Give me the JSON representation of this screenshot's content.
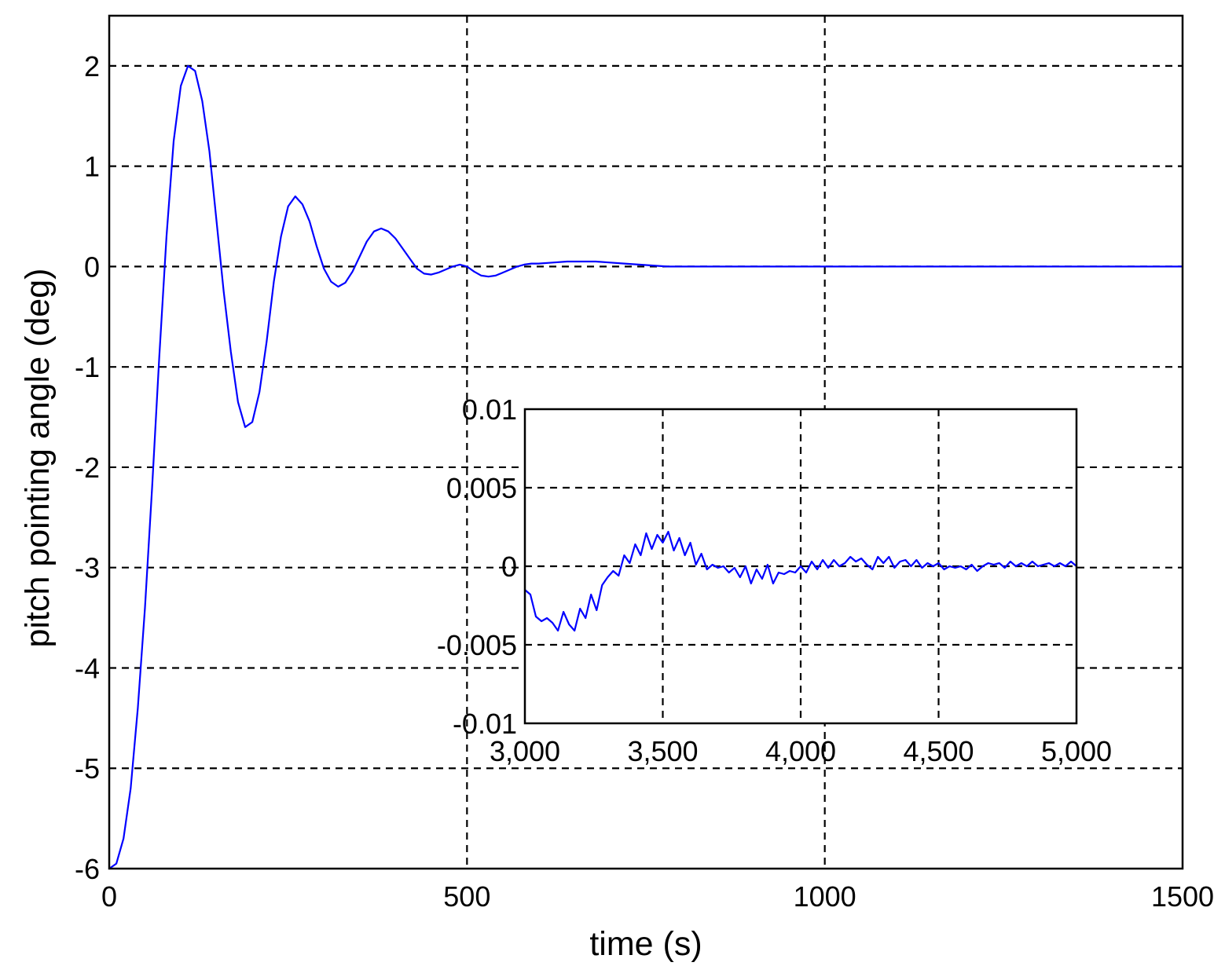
{
  "chart_data": [
    {
      "id": "main",
      "type": "line",
      "title": "",
      "xlabel": "time (s)",
      "ylabel": "pitch pointing angle (deg)",
      "xlim": [
        0,
        1500
      ],
      "ylim": [
        -6,
        2.5
      ],
      "x_ticks": [
        0,
        500,
        1000,
        1500
      ],
      "x_tick_labels": [
        "0",
        "500",
        "1000",
        "1500"
      ],
      "y_ticks": [
        2,
        1,
        0,
        -1,
        -2,
        -3,
        -4,
        -5,
        -6
      ],
      "y_tick_labels": [
        "2",
        "1",
        "0",
        "-1",
        "-2",
        "-3",
        "-4",
        "-5",
        "-6"
      ],
      "grid": true,
      "series": [
        {
          "color": "#0000ff",
          "x": [
            0,
            10,
            20,
            30,
            40,
            50,
            60,
            70,
            80,
            90,
            100,
            110,
            120,
            130,
            140,
            150,
            160,
            170,
            180,
            190,
            200,
            210,
            220,
            230,
            240,
            250,
            260,
            270,
            280,
            290,
            300,
            310,
            320,
            330,
            340,
            350,
            360,
            370,
            380,
            390,
            400,
            410,
            420,
            430,
            440,
            450,
            460,
            470,
            480,
            490,
            500,
            510,
            520,
            530,
            540,
            550,
            560,
            570,
            580,
            590,
            600,
            620,
            640,
            660,
            680,
            700,
            720,
            740,
            760,
            780,
            800,
            820,
            840,
            860,
            880,
            900,
            920,
            940,
            960,
            980,
            1000,
            1050,
            1100,
            1150,
            1200,
            1250,
            1300,
            1350,
            1400,
            1450,
            1500
          ],
          "y": [
            -6.0,
            -5.95,
            -5.7,
            -5.2,
            -4.4,
            -3.4,
            -2.2,
            -0.9,
            0.3,
            1.25,
            1.8,
            2.0,
            1.95,
            1.65,
            1.15,
            0.45,
            -0.25,
            -0.85,
            -1.35,
            -1.6,
            -1.55,
            -1.25,
            -0.75,
            -0.15,
            0.3,
            0.6,
            0.7,
            0.62,
            0.45,
            0.2,
            -0.02,
            -0.15,
            -0.2,
            -0.16,
            -0.05,
            0.1,
            0.25,
            0.35,
            0.38,
            0.35,
            0.28,
            0.18,
            0.08,
            -0.02,
            -0.07,
            -0.08,
            -0.06,
            -0.03,
            0.0,
            0.02,
            0.0,
            -0.05,
            -0.09,
            -0.1,
            -0.09,
            -0.06,
            -0.03,
            0.0,
            0.02,
            0.03,
            0.03,
            0.04,
            0.05,
            0.05,
            0.05,
            0.04,
            0.03,
            0.02,
            0.01,
            0.0,
            0.0,
            0.0,
            0.0,
            0.0,
            0.0,
            0.0,
            0.0,
            0.0,
            0.0,
            0.0,
            0.0,
            0.0,
            0.0,
            0.0,
            0.0,
            0.0,
            0.0,
            0.0,
            0.0,
            0.0,
            0.0
          ]
        }
      ]
    },
    {
      "id": "inset",
      "type": "line",
      "title": "",
      "xlabel": "",
      "ylabel": "",
      "xlim": [
        3000,
        5000
      ],
      "ylim": [
        -0.01,
        0.01
      ],
      "x_ticks": [
        3000,
        3500,
        4000,
        4500,
        5000
      ],
      "x_tick_labels": [
        "3,000",
        "3,500",
        "4,000",
        "4,500",
        "5,000"
      ],
      "y_ticks": [
        0.01,
        0.005,
        0,
        -0.005,
        -0.01
      ],
      "y_tick_labels": [
        "0.01",
        "0.005",
        "0",
        "-0.005",
        "-0.01"
      ],
      "grid": true,
      "series": [
        {
          "color": "#0000ff",
          "x": [
            3000,
            3020,
            3040,
            3060,
            3080,
            3100,
            3120,
            3140,
            3160,
            3180,
            3200,
            3220,
            3240,
            3260,
            3280,
            3300,
            3320,
            3340,
            3360,
            3380,
            3400,
            3420,
            3440,
            3460,
            3480,
            3500,
            3520,
            3540,
            3560,
            3580,
            3600,
            3620,
            3640,
            3660,
            3680,
            3700,
            3720,
            3740,
            3760,
            3780,
            3800,
            3820,
            3840,
            3860,
            3880,
            3900,
            3920,
            3940,
            3960,
            3980,
            4000,
            4020,
            4040,
            4060,
            4080,
            4100,
            4120,
            4140,
            4160,
            4180,
            4200,
            4220,
            4240,
            4260,
            4280,
            4300,
            4320,
            4340,
            4360,
            4380,
            4400,
            4420,
            4440,
            4460,
            4480,
            4500,
            4520,
            4540,
            4560,
            4580,
            4600,
            4620,
            4640,
            4660,
            4680,
            4700,
            4720,
            4740,
            4760,
            4780,
            4800,
            4820,
            4840,
            4860,
            4880,
            4900,
            4920,
            4940,
            4960,
            4980,
            5000
          ],
          "y": [
            -0.0015,
            -0.0018,
            -0.0032,
            -0.0035,
            -0.0033,
            -0.0036,
            -0.0041,
            -0.0029,
            -0.0037,
            -0.0041,
            -0.0027,
            -0.0033,
            -0.0018,
            -0.0028,
            -0.0012,
            -0.0007,
            -0.0003,
            -0.0006,
            0.0007,
            0.0002,
            0.0014,
            0.0007,
            0.0021,
            0.0011,
            0.002,
            0.0015,
            0.0022,
            0.001,
            0.0018,
            0.0007,
            0.0015,
            0.0001,
            0.0008,
            -0.0002,
            0.0001,
            -0.0001,
            0.0,
            -0.0004,
            -0.0001,
            -0.0007,
            0.0,
            -0.0011,
            -0.0002,
            -0.0008,
            0.0001,
            -0.0011,
            -0.0004,
            -0.0005,
            -0.0003,
            -0.0004,
            0.0,
            -0.0004,
            0.0003,
            -0.0002,
            0.0004,
            -0.0001,
            0.0004,
            0.0,
            0.0002,
            0.0006,
            0.0003,
            0.0005,
            0.0001,
            -0.0002,
            0.0006,
            0.0002,
            0.0006,
            -0.0001,
            0.0003,
            0.0004,
            0.0,
            0.0004,
            -0.0001,
            0.0002,
            0.0,
            0.0002,
            -0.0002,
            0.0,
            -0.0001,
            0.0,
            -0.0002,
            0.0001,
            -0.0003,
            0.0,
            0.0002,
            0.0001,
            0.0002,
            -0.0001,
            0.0003,
            0.0,
            0.0002,
            0.0,
            0.0003,
            0.0,
            0.0001,
            0.0002,
            0.0,
            0.0002,
            0.0,
            0.0003,
            0.0
          ]
        }
      ]
    }
  ]
}
